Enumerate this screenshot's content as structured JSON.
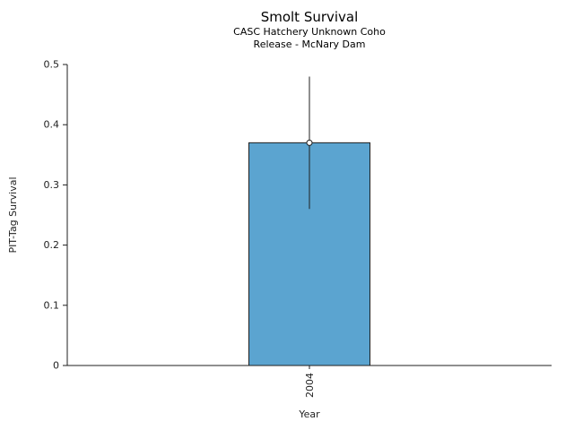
{
  "chart_data": {
    "type": "bar",
    "title": "Smolt Survival",
    "subtitle_line1": "CASC Hatchery Unknown Coho",
    "subtitle_line2": "Release - McNary Dam",
    "xlabel": "Year",
    "ylabel": "PIT-Tag Survival",
    "categories": [
      "2004"
    ],
    "values": [
      0.37
    ],
    "error_low": [
      0.26
    ],
    "error_high": [
      0.48
    ],
    "ylim": [
      0,
      0.5
    ],
    "yticks": [
      0,
      0.1,
      0.2,
      0.3,
      0.4,
      0.5
    ],
    "ytick_labels": [
      "0",
      "0.1",
      "0.2",
      "0.3",
      "0.4",
      "0.5"
    ],
    "grid": false,
    "legend": false,
    "bar_color": "#5ba4d0",
    "bar_edge_color": "#1f1f1f",
    "axis_color": "#1f1f1f"
  }
}
